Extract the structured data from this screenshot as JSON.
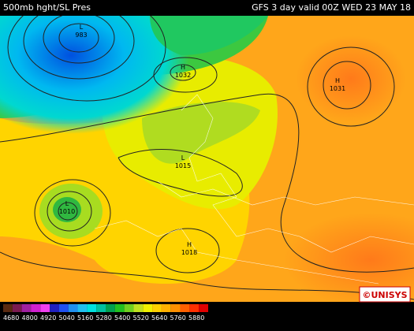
{
  "header": {
    "left": "500mb hght/SL Pres",
    "right": "GFS 3 day valid 00Z WED 23 MAY 18"
  },
  "pressure_centers": [
    {
      "symbol": "L",
      "value": 983
    },
    {
      "symbol": "H",
      "value": 1032
    },
    {
      "symbol": "H",
      "value": 1031
    },
    {
      "symbol": "L",
      "value": 1015
    },
    {
      "symbol": "L",
      "value": 1010
    },
    {
      "symbol": "H",
      "value": 1018
    }
  ],
  "colorbar": {
    "labels": [
      4680,
      4800,
      4920,
      5040,
      5160,
      5280,
      5400,
      5520,
      5640,
      5760,
      5880
    ]
  },
  "logo": "©UNISYS"
}
